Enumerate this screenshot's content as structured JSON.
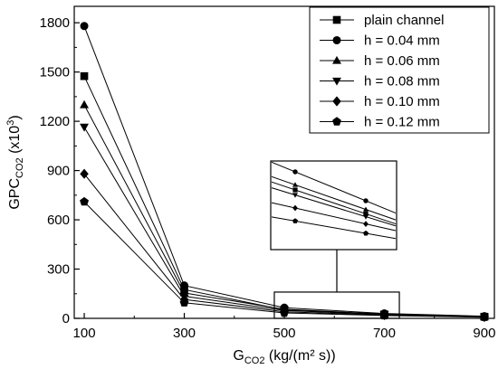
{
  "chart_data": {
    "type": "line",
    "xlabel": {
      "main": "G",
      "sub": "CO2",
      "rest": " (kg/(m² s))"
    },
    "ylabel": {
      "main": "GPC",
      "sub": "CO2",
      "rest": " (x10",
      "sup": "3",
      "close": ")"
    },
    "xlim": [
      80,
      920
    ],
    "ylim": [
      0,
      1900
    ],
    "xticks": [
      100,
      300,
      500,
      700,
      900
    ],
    "yticks": [
      0,
      300,
      600,
      900,
      1200,
      1500,
      1800
    ],
    "x": [
      100,
      300,
      500,
      700,
      900
    ],
    "legend_position": "top-right",
    "series": [
      {
        "name": "plain channel",
        "marker": "square",
        "values": [
          1475,
          175,
          52,
          24,
          10
        ]
      },
      {
        "name": "h = 0.04 mm",
        "marker": "circle",
        "values": [
          1780,
          200,
          65,
          30,
          13
        ]
      },
      {
        "name": "h = 0.06 mm",
        "marker": "triangle-up",
        "values": [
          1300,
          155,
          55,
          26,
          11
        ]
      },
      {
        "name": "h = 0.08 mm",
        "marker": "triangle-down",
        "values": [
          1165,
          135,
          48,
          23,
          9
        ]
      },
      {
        "name": "h = 0.10 mm",
        "marker": "diamond",
        "values": [
          880,
          115,
          40,
          20,
          8
        ]
      },
      {
        "name": "h = 0.12 mm",
        "marker": "pentagon",
        "values": [
          710,
          95,
          33,
          17,
          7
        ]
      }
    ],
    "zoom_region": {
      "x": [
        480,
        730
      ],
      "y": [
        0,
        160
      ]
    },
    "inset": {
      "x": [
        500,
        700
      ],
      "series_values": [
        [
          0.75,
          0.42
        ],
        [
          1.0,
          0.6
        ],
        [
          0.82,
          0.48
        ],
        [
          0.68,
          0.38
        ],
        [
          0.5,
          0.28
        ],
        [
          0.32,
          0.15
        ]
      ]
    }
  }
}
